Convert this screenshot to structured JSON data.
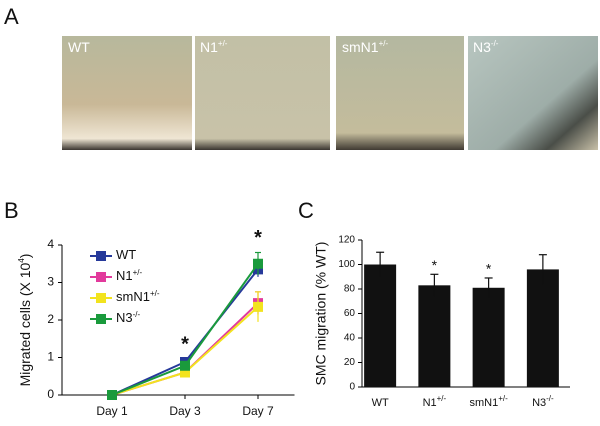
{
  "panels": {
    "a": "A",
    "b": "B",
    "c": "C"
  },
  "micrographs": [
    {
      "base": "WT"
    },
    {
      "base": "N1",
      "sup": "+/-"
    },
    {
      "base": "smN1",
      "sup": "+/-"
    },
    {
      "base": "N3",
      "sup": "-/-"
    }
  ],
  "chart_data": [
    {
      "type": "line",
      "y_label": {
        "text": "Migrated cells (X 10",
        "sup": "4",
        "tail": ")"
      },
      "categories": [
        "Day 1",
        "Day 3",
        "Day 7"
      ],
      "series": [
        {
          "name": "WT",
          "color": "#26399a",
          "values": [
            0,
            0.88,
            3.35
          ],
          "errors": [
            0,
            0.08,
            0.2
          ]
        },
        {
          "name": "N1",
          "name_sup": "+/-",
          "color": "#e23a9c",
          "values": [
            0,
            0.6,
            2.45
          ],
          "errors": [
            0,
            0.05,
            0.3
          ]
        },
        {
          "name": "smN1",
          "name_sup": "+/-",
          "color": "#f2e31e",
          "values": [
            0,
            0.6,
            2.35
          ],
          "errors": [
            0,
            0.1,
            0.4
          ]
        },
        {
          "name": "N3",
          "name_sup": "-/-",
          "color": "#1a9a3c",
          "values": [
            0,
            0.78,
            3.5
          ],
          "errors": [
            0,
            0.1,
            0.3
          ]
        }
      ],
      "significance": [
        null,
        "*",
        "*"
      ],
      "ylim": [
        0,
        4
      ],
      "yticks": [
        0,
        1,
        2,
        3,
        4
      ]
    },
    {
      "type": "bar",
      "y_label": "SMC migration (% WT)",
      "categories": [
        "WT",
        "N1",
        "smN1",
        "N3"
      ],
      "category_sups": [
        null,
        "+/-",
        "+/-",
        "-/-"
      ],
      "values": [
        100,
        83,
        81,
        96
      ],
      "errors": [
        10,
        9,
        8,
        12
      ],
      "significance": [
        null,
        "*",
        "*",
        null
      ],
      "color": "#111111",
      "ylim": [
        0,
        120
      ],
      "yticks": [
        0,
        20,
        40,
        60,
        80,
        100,
        120
      ]
    }
  ]
}
